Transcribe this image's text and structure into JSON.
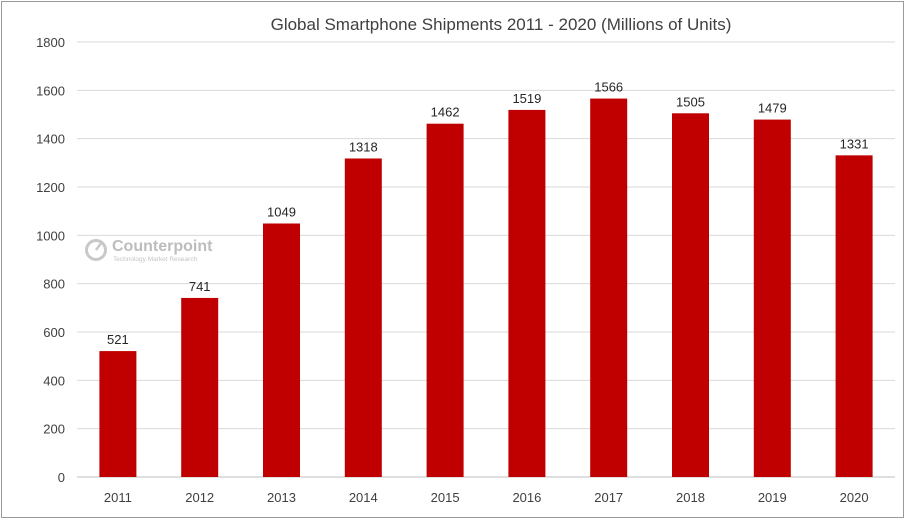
{
  "chart_data": {
    "type": "bar",
    "title": "Global Smartphone Shipments 2011 - 2020 (Millions of Units)",
    "categories": [
      "2011",
      "2012",
      "2013",
      "2014",
      "2015",
      "2016",
      "2017",
      "2018",
      "2019",
      "2020"
    ],
    "values": [
      521,
      741,
      1049,
      1318,
      1462,
      1519,
      1566,
      1505,
      1479,
      1331
    ],
    "ylim": [
      0,
      1800
    ],
    "yticks": [
      0,
      200,
      400,
      600,
      800,
      1000,
      1200,
      1400,
      1600,
      1800
    ],
    "grid": true,
    "legend": "none",
    "bar_color": "#c00000"
  },
  "watermark": {
    "name": "Counterpoint",
    "subtitle": "Technology Market Research"
  }
}
